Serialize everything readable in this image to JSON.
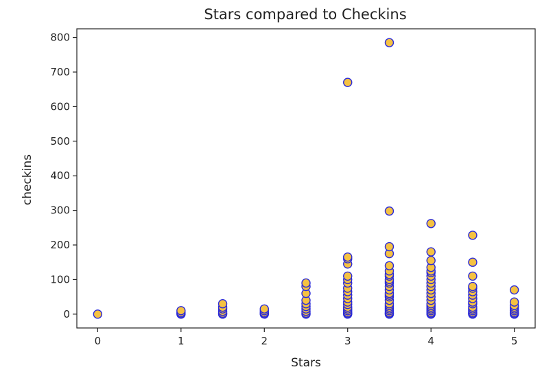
{
  "chart_data": {
    "type": "scatter",
    "title": "Stars compared to Checkins",
    "xlabel": "Stars",
    "ylabel": "checkins",
    "xlim": [
      -0.25,
      5.25
    ],
    "ylim": [
      -40,
      825
    ],
    "xticks": [
      0,
      1,
      2,
      3,
      4,
      5
    ],
    "yticks": [
      0,
      100,
      200,
      300,
      400,
      500,
      600,
      700,
      800
    ],
    "grid": false,
    "marker_face_color": "#f5c242",
    "marker_edge_color": "#2b2bd9",
    "series": [
      {
        "points": [
          [
            0,
            0
          ],
          [
            1,
            0
          ],
          [
            1,
            2
          ],
          [
            1,
            5
          ],
          [
            1,
            10
          ],
          [
            1.5,
            0
          ],
          [
            1.5,
            3
          ],
          [
            1.5,
            8
          ],
          [
            1.5,
            15
          ],
          [
            1.5,
            20
          ],
          [
            1.5,
            30
          ],
          [
            2,
            0
          ],
          [
            2,
            2
          ],
          [
            2,
            5
          ],
          [
            2,
            10
          ],
          [
            2,
            15
          ],
          [
            2.5,
            0
          ],
          [
            2.5,
            3
          ],
          [
            2.5,
            8
          ],
          [
            2.5,
            15
          ],
          [
            2.5,
            22
          ],
          [
            2.5,
            30
          ],
          [
            2.5,
            40
          ],
          [
            2.5,
            60
          ],
          [
            2.5,
            80
          ],
          [
            2.5,
            90
          ],
          [
            3,
            0
          ],
          [
            3,
            2
          ],
          [
            3,
            5
          ],
          [
            3,
            10
          ],
          [
            3,
            15
          ],
          [
            3,
            20
          ],
          [
            3,
            28
          ],
          [
            3,
            35
          ],
          [
            3,
            45
          ],
          [
            3,
            55
          ],
          [
            3,
            65
          ],
          [
            3,
            75
          ],
          [
            3,
            90
          ],
          [
            3,
            100
          ],
          [
            3,
            110
          ],
          [
            3,
            145
          ],
          [
            3,
            160
          ],
          [
            3,
            165
          ],
          [
            3,
            670
          ],
          [
            3.5,
            0
          ],
          [
            3.5,
            2
          ],
          [
            3.5,
            5
          ],
          [
            3.5,
            10
          ],
          [
            3.5,
            15
          ],
          [
            3.5,
            20
          ],
          [
            3.5,
            25
          ],
          [
            3.5,
            30
          ],
          [
            3.5,
            40
          ],
          [
            3.5,
            50
          ],
          [
            3.5,
            55
          ],
          [
            3.5,
            60
          ],
          [
            3.5,
            70
          ],
          [
            3.5,
            80
          ],
          [
            3.5,
            90
          ],
          [
            3.5,
            95
          ],
          [
            3.5,
            100
          ],
          [
            3.5,
            110
          ],
          [
            3.5,
            115
          ],
          [
            3.5,
            125
          ],
          [
            3.5,
            140
          ],
          [
            3.5,
            175
          ],
          [
            3.5,
            195
          ],
          [
            3.5,
            298
          ],
          [
            3.5,
            785
          ],
          [
            4,
            0
          ],
          [
            4,
            2
          ],
          [
            4,
            5
          ],
          [
            4,
            10
          ],
          [
            4,
            15
          ],
          [
            4,
            20
          ],
          [
            4,
            25
          ],
          [
            4,
            30
          ],
          [
            4,
            40
          ],
          [
            4,
            50
          ],
          [
            4,
            60
          ],
          [
            4,
            70
          ],
          [
            4,
            80
          ],
          [
            4,
            90
          ],
          [
            4,
            100
          ],
          [
            4,
            110
          ],
          [
            4,
            120
          ],
          [
            4,
            125
          ],
          [
            4,
            135
          ],
          [
            4,
            155
          ],
          [
            4,
            180
          ],
          [
            4,
            262
          ],
          [
            4.5,
            0
          ],
          [
            4.5,
            2
          ],
          [
            4.5,
            5
          ],
          [
            4.5,
            10
          ],
          [
            4.5,
            15
          ],
          [
            4.5,
            20
          ],
          [
            4.5,
            30
          ],
          [
            4.5,
            35
          ],
          [
            4.5,
            45
          ],
          [
            4.5,
            55
          ],
          [
            4.5,
            65
          ],
          [
            4.5,
            75
          ],
          [
            4.5,
            80
          ],
          [
            4.5,
            110
          ],
          [
            4.5,
            150
          ],
          [
            4.5,
            228
          ],
          [
            5,
            0
          ],
          [
            5,
            2
          ],
          [
            5,
            5
          ],
          [
            5,
            10
          ],
          [
            5,
            15
          ],
          [
            5,
            20
          ],
          [
            5,
            25
          ],
          [
            5,
            35
          ],
          [
            5,
            70
          ]
        ]
      }
    ]
  }
}
